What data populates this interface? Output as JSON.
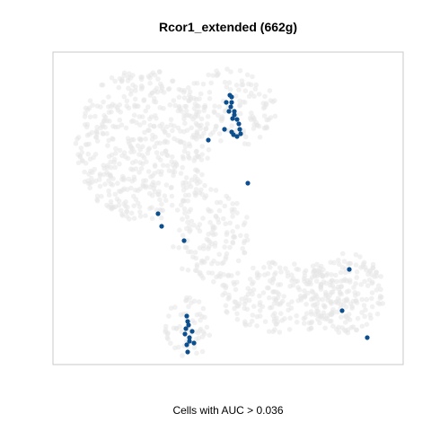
{
  "chart_data": {
    "type": "scatter",
    "title": "Rcor1_extended (662g)",
    "xlabel": "Cells with AUC > 0.036",
    "ylabel": "",
    "xlim": [
      0,
      390
    ],
    "ylim": [
      0,
      348
    ],
    "grid": false,
    "colors": {
      "background_cells": "#e6e6e6",
      "highlighted_cells": "#0d4f8c",
      "frame": "#c8c8c8"
    },
    "background_regions": [
      {
        "name": "upper-left-lobe",
        "cx": 100,
        "cy": 245,
        "rx": 75,
        "ry": 85,
        "count": 480
      },
      {
        "name": "upper-middle-band",
        "cx": 195,
        "cy": 285,
        "rx": 55,
        "ry": 45,
        "count": 140
      },
      {
        "name": "central-trunk",
        "cx": 175,
        "cy": 145,
        "rx": 45,
        "ry": 55,
        "count": 150
      },
      {
        "name": "lower-middle-band",
        "cx": 255,
        "cy": 75,
        "rx": 70,
        "ry": 40,
        "count": 220
      },
      {
        "name": "right-arm",
        "cx": 325,
        "cy": 80,
        "rx": 45,
        "ry": 45,
        "count": 170
      },
      {
        "name": "bottom-stem",
        "cx": 150,
        "cy": 40,
        "rx": 25,
        "ry": 35,
        "count": 60
      }
    ],
    "highlighted_points": [
      [
        197,
        300
      ],
      [
        199,
        298
      ],
      [
        193,
        292
      ],
      [
        198,
        287
      ],
      [
        202,
        282
      ],
      [
        205,
        273
      ],
      [
        200,
        274
      ],
      [
        207,
        268
      ],
      [
        209,
        257
      ],
      [
        199,
        259
      ],
      [
        201,
        256
      ],
      [
        191,
        262
      ],
      [
        173,
        250
      ],
      [
        196,
        282
      ],
      [
        199,
        292
      ],
      [
        202,
        278
      ],
      [
        208,
        262
      ],
      [
        205,
        254
      ],
      [
        217,
        202
      ],
      [
        117,
        168
      ],
      [
        121,
        154
      ],
      [
        146,
        138
      ],
      [
        149,
        54
      ],
      [
        150,
        48
      ],
      [
        151,
        44
      ],
      [
        147,
        34
      ],
      [
        152,
        30
      ],
      [
        149,
        22
      ],
      [
        150,
        14
      ],
      [
        155,
        37
      ],
      [
        157,
        24
      ],
      [
        148,
        40
      ],
      [
        152,
        26
      ],
      [
        330,
        106
      ],
      [
        322,
        60
      ],
      [
        350,
        30
      ]
    ]
  }
}
